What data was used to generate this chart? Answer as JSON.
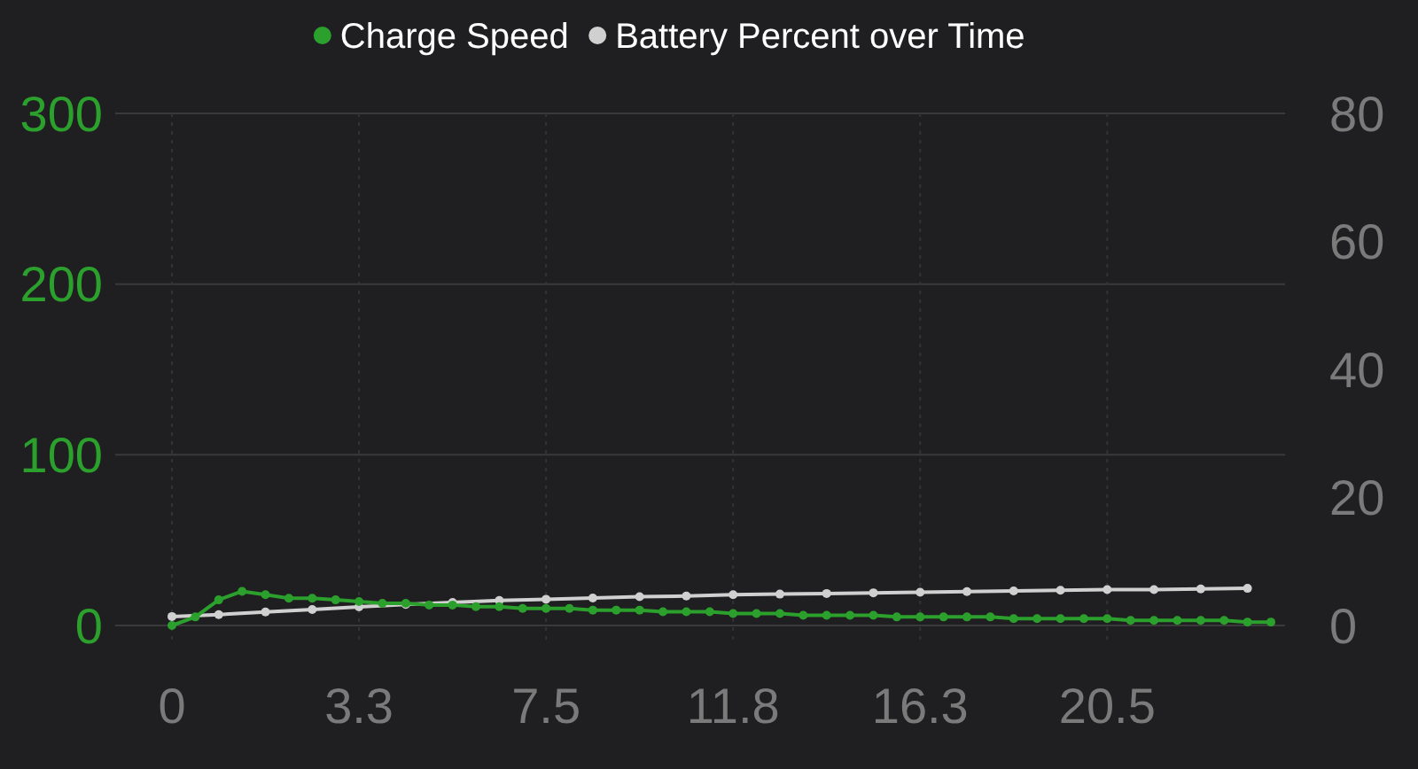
{
  "chart_data": {
    "type": "line",
    "categories": [
      "0",
      null,
      null,
      null,
      null,
      null,
      null,
      null,
      "3.3",
      null,
      null,
      null,
      null,
      null,
      null,
      null,
      "7.5",
      null,
      null,
      null,
      null,
      null,
      null,
      null,
      "11.8",
      null,
      null,
      null,
      null,
      null,
      null,
      null,
      "16.3",
      null,
      null,
      null,
      null,
      null,
      null,
      null,
      "20.5",
      null,
      null,
      null,
      null,
      null,
      null,
      null
    ],
    "series": [
      {
        "name": "Charge Speed",
        "color": "#2ca02c",
        "values": [
          0,
          5,
          15,
          20,
          18,
          16,
          16,
          15,
          14,
          13,
          13,
          12,
          12,
          11,
          11,
          10,
          10,
          10,
          9,
          9,
          9,
          8,
          8,
          8,
          7,
          7,
          7,
          6,
          6,
          6,
          6,
          5,
          5,
          5,
          5,
          5,
          4,
          4,
          4,
          4,
          4,
          3,
          3,
          3,
          3,
          3,
          2,
          2
        ]
      },
      {
        "name": "Battery Percent over Time",
        "color": "#d0d0d0",
        "axis": "y2",
        "values": [
          1.4,
          null,
          1.7,
          null,
          2.1,
          null,
          2.5,
          null,
          2.9,
          null,
          3.3,
          null,
          3.6,
          null,
          3.9,
          null,
          4.1,
          null,
          4.3,
          null,
          4.5,
          null,
          4.6,
          null,
          4.8,
          null,
          4.9,
          null,
          5.0,
          null,
          5.1,
          null,
          5.2,
          null,
          5.3,
          null,
          5.4,
          null,
          5.5,
          null,
          5.6,
          null,
          5.6,
          null,
          5.7,
          null,
          5.8,
          null
        ]
      }
    ],
    "ylim": [
      0,
      300
    ],
    "yticks": [
      0,
      100,
      200,
      300
    ],
    "y2lim": [
      0,
      80
    ],
    "y2ticks": [
      0,
      20,
      40,
      60,
      80
    ],
    "grid": true,
    "legend": "top",
    "marker": "circle",
    "line_style": "solid"
  }
}
